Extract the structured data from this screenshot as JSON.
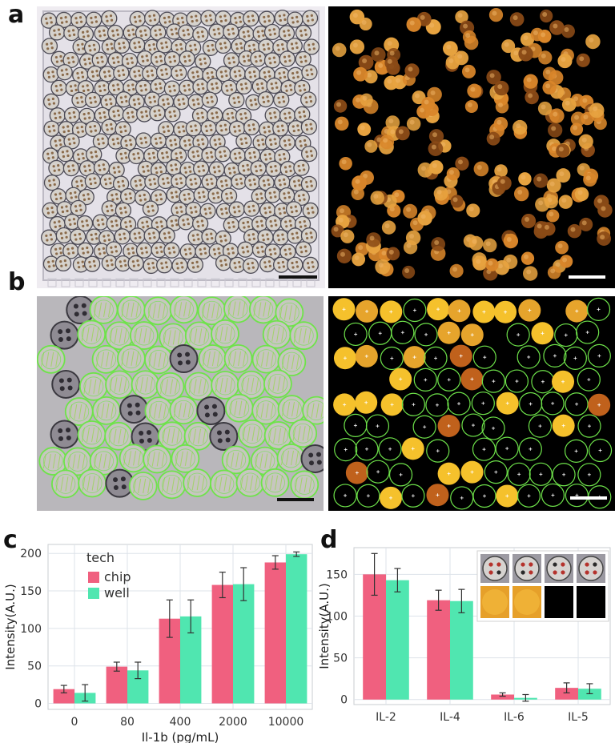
{
  "labels": {
    "a": "a",
    "b": "b",
    "c": "c",
    "d": "d"
  },
  "colors": {
    "chip": "#f0607f",
    "well": "#50e6b0",
    "micro_gray": "#b9b7bb",
    "fluor_bg": "#000000",
    "fluor_orange": "#d9862a",
    "fluor_yellow": "#f5c12c",
    "green_outline": "#6ee34a",
    "scale_bar_dark": "#111111",
    "scale_bar_light": "#ffffff"
  },
  "panels": {
    "a_left": {
      "kind": "brightfield-beads",
      "scale_bar": "dark"
    },
    "a_right": {
      "kind": "fluorescence-beads",
      "scale_bar": "light"
    },
    "b_left": {
      "kind": "brightfield-beads-segmented",
      "scale_bar": "dark"
    },
    "b_right": {
      "kind": "fluorescence-beads-segmented",
      "scale_bar": "light"
    }
  },
  "chart_data": [
    {
      "type": "bar",
      "categories": [
        "0",
        "80",
        "400",
        "2000",
        "10000"
      ],
      "series": [
        {
          "name": "chip",
          "values": [
            19,
            49,
            113,
            158,
            188
          ],
          "errors": [
            5,
            6,
            25,
            17,
            9
          ]
        },
        {
          "name": "well",
          "values": [
            14,
            44,
            116,
            159,
            199
          ],
          "errors": [
            11,
            11,
            22,
            22,
            3
          ]
        }
      ],
      "xlabel": "Il-1b (pg/mL)",
      "ylabel": "Intensity(A.U.)",
      "yticks": [
        0,
        50,
        100,
        150,
        200
      ],
      "ylim": [
        -8,
        212
      ],
      "legend": {
        "title": "tech",
        "placement": "top-left"
      },
      "grid": true
    },
    {
      "type": "bar",
      "categories": [
        "IL-2",
        "IL-4",
        "IL-6",
        "IL-5"
      ],
      "series": [
        {
          "name": "chip",
          "values": [
            150,
            119,
            6,
            14
          ],
          "errors": [
            25,
            12,
            2,
            6
          ]
        },
        {
          "name": "well",
          "values": [
            143,
            118,
            2,
            13
          ],
          "errors": [
            14,
            14,
            4,
            6
          ]
        }
      ],
      "xlabel": "",
      "ylabel": "Intensity(A.U.)",
      "yticks": [
        0,
        50,
        100,
        150
      ],
      "ylim": [
        -6,
        182
      ],
      "grid": true,
      "inset": "bead-thumbnails"
    }
  ]
}
